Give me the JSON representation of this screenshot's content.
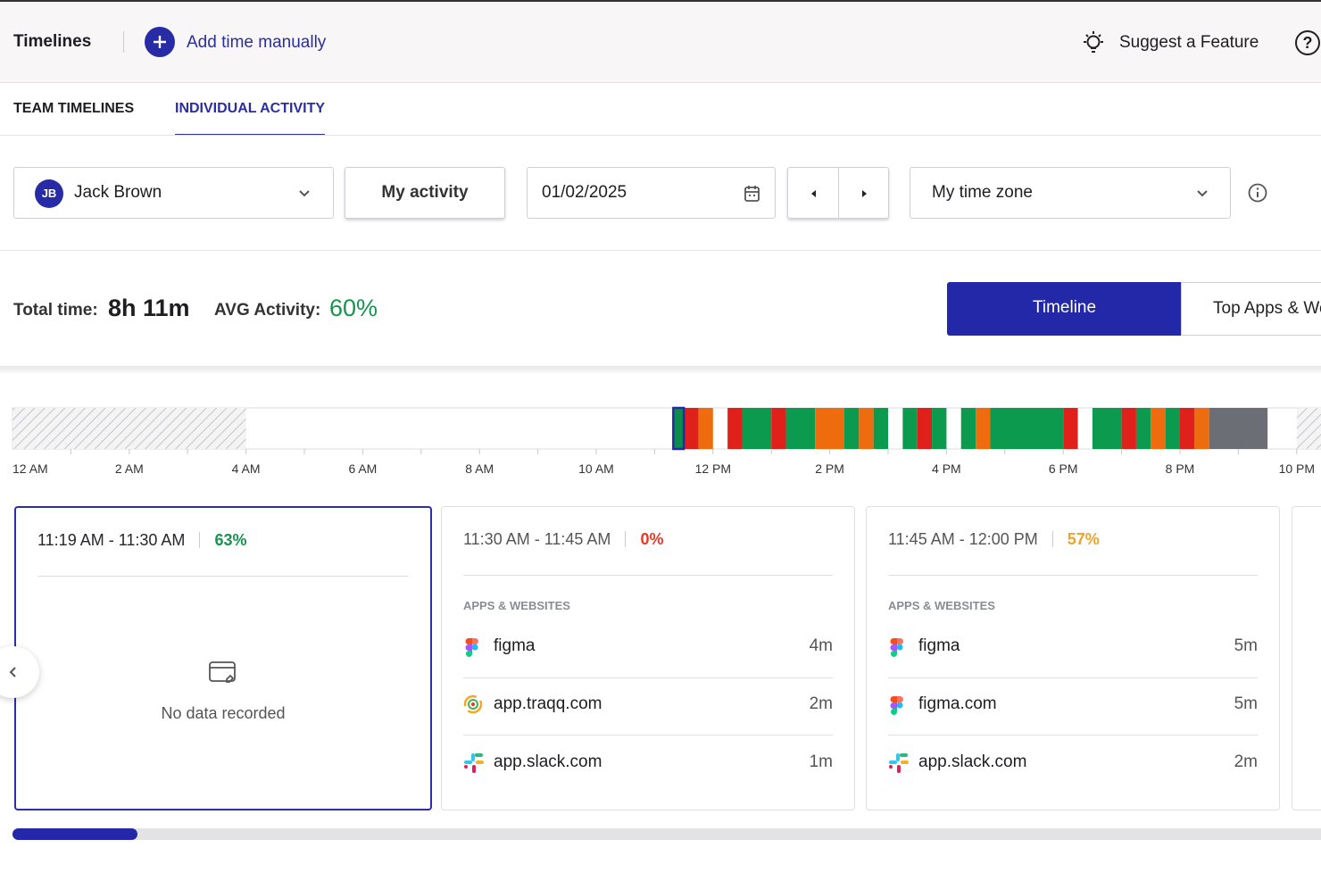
{
  "header": {
    "title": "Timelines",
    "add_time": "Add time manually",
    "suggest": "Suggest a Feature",
    "help": "?"
  },
  "tabs": [
    "TEAM TIMELINES",
    "INDIVIDUAL ACTIVITY"
  ],
  "filters": {
    "user_initials": "JB",
    "user": "Jack Brown",
    "activity": "My activity",
    "date": "01/02/2025",
    "timezone": "My time zone"
  },
  "summary": {
    "total_label": "Total time:",
    "total": "8h 11m",
    "avg_label": "AVG Activity:",
    "avg": "60%"
  },
  "views": [
    "Timeline",
    "Top Apps & Websites"
  ],
  "timeline": {
    "ticks": [
      {
        "value": 0,
        "label": "12 AM"
      },
      {
        "value": 2,
        "label": "2 AM"
      },
      {
        "value": 4,
        "label": "4 AM"
      },
      {
        "value": 6,
        "label": "6 AM"
      },
      {
        "value": 8,
        "label": "8 AM"
      },
      {
        "value": 10,
        "label": "10 AM"
      },
      {
        "value": 12,
        "label": "12 PM"
      },
      {
        "value": 14,
        "label": "2 PM"
      },
      {
        "value": 16,
        "label": "4 PM"
      },
      {
        "value": 18,
        "label": "6 PM"
      },
      {
        "value": 20,
        "label": "8 PM"
      },
      {
        "value": 22,
        "label": "10 PM"
      }
    ],
    "minor_ticks": [
      1,
      3,
      5,
      7,
      9,
      11,
      13,
      15,
      17,
      19,
      21
    ],
    "offline": [
      {
        "start": 0,
        "end": 4
      },
      {
        "start": 22,
        "end": 24
      }
    ],
    "segments": [
      {
        "start": 11.32,
        "end": 11.5,
        "color": "#0c8c4a"
      },
      {
        "start": 11.5,
        "end": 11.75,
        "color": "#e0201b"
      },
      {
        "start": 11.75,
        "end": 12,
        "color": "#ee6c0e"
      },
      {
        "start": 12.25,
        "end": 12.5,
        "color": "#e0201b"
      },
      {
        "start": 12.5,
        "end": 13,
        "color": "#0c9a4e"
      },
      {
        "start": 13,
        "end": 13.25,
        "color": "#e0201b"
      },
      {
        "start": 13.25,
        "end": 13.75,
        "color": "#0c9a4e"
      },
      {
        "start": 13.75,
        "end": 14.25,
        "color": "#ee6c0e"
      },
      {
        "start": 14.25,
        "end": 14.5,
        "color": "#0c9a4e"
      },
      {
        "start": 14.5,
        "end": 14.75,
        "color": "#ee6c0e"
      },
      {
        "start": 14.75,
        "end": 15,
        "color": "#0c9a4e"
      },
      {
        "start": 15.25,
        "end": 15.5,
        "color": "#0c9a4e"
      },
      {
        "start": 15.5,
        "end": 15.75,
        "color": "#e0201b"
      },
      {
        "start": 15.75,
        "end": 16,
        "color": "#0c9a4e"
      },
      {
        "start": 16.25,
        "end": 16.5,
        "color": "#0c9a4e"
      },
      {
        "start": 16.5,
        "end": 16.75,
        "color": "#ee6c0e"
      },
      {
        "start": 16.75,
        "end": 18,
        "color": "#0c9a4e"
      },
      {
        "start": 18,
        "end": 18.25,
        "color": "#e0201b"
      },
      {
        "start": 18.5,
        "end": 19,
        "color": "#0c9a4e"
      },
      {
        "start": 19,
        "end": 19.25,
        "color": "#e0201b"
      },
      {
        "start": 19.25,
        "end": 19.5,
        "color": "#0c9a4e"
      },
      {
        "start": 19.5,
        "end": 19.75,
        "color": "#ee6c0e"
      },
      {
        "start": 19.75,
        "end": 20,
        "color": "#0c9a4e"
      },
      {
        "start": 20,
        "end": 20.25,
        "color": "#e0201b"
      },
      {
        "start": 20.25,
        "end": 20.5,
        "color": "#ee6c0e"
      },
      {
        "start": 20.5,
        "end": 21.5,
        "color": "#6b6e75"
      }
    ],
    "selected": 0
  },
  "cards": [
    {
      "time": "11:19 AM - 11:30 AM",
      "activity": "63%",
      "activity_color": "#14964f",
      "empty": "No data recorded"
    },
    {
      "time": "11:30 AM - 11:45 AM",
      "activity": "0%",
      "activity_color": "#e53a2b",
      "section": "APPS & WEBSITES",
      "apps": [
        {
          "name": "figma",
          "duration": "4m"
        },
        {
          "name": "app.traqq.com",
          "duration": "2m"
        },
        {
          "name": "app.slack.com",
          "duration": "1m"
        }
      ]
    },
    {
      "time": "11:45 AM - 12:00 PM",
      "activity": "57%",
      "activity_color": "#f0a22c",
      "section": "APPS & WEBSITES",
      "apps": [
        {
          "name": "figma",
          "duration": "5m"
        },
        {
          "name": "figma.com",
          "duration": "5m"
        },
        {
          "name": "app.slack.com",
          "duration": "2m"
        }
      ]
    }
  ]
}
